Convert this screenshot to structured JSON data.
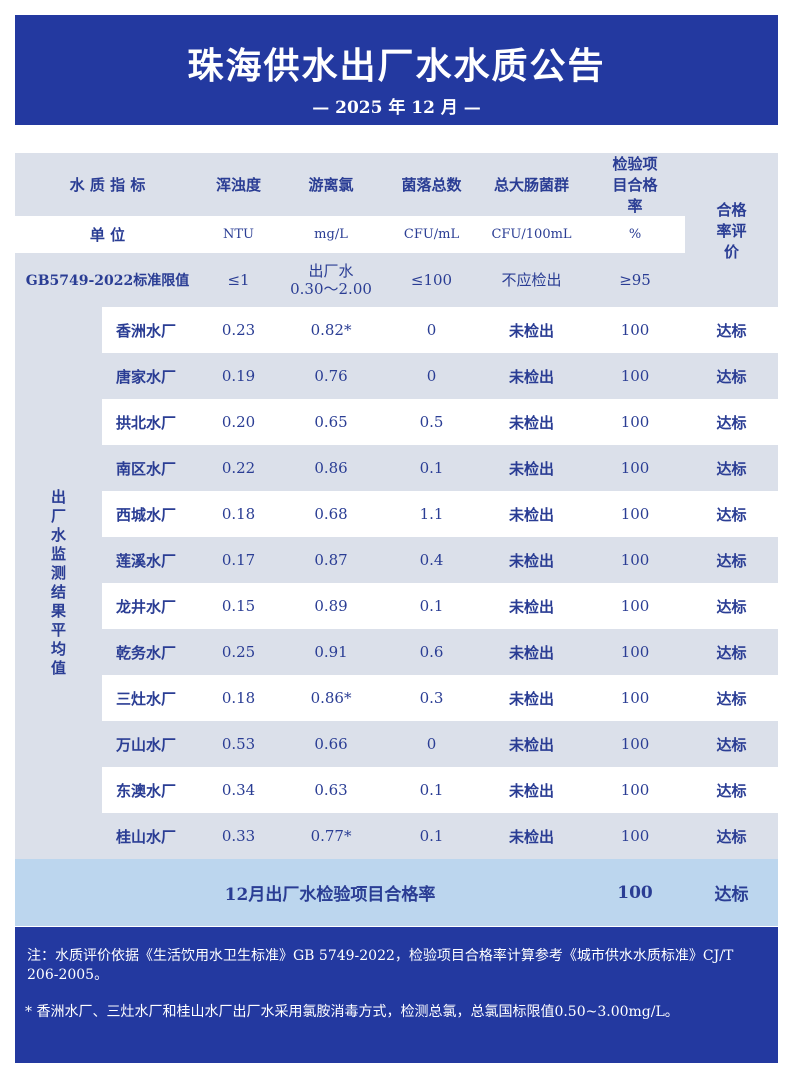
{
  "header": {
    "title": "珠海供水出厂水水质公告",
    "subtitle": "— 2025 年 12 月 —"
  },
  "table": {
    "columns": [
      "水 质 指 标",
      "浑浊度",
      "游离氯",
      "菌落总数",
      "总大肠菌群",
      "检验项目合格率",
      "合格率评价"
    ],
    "units": {
      "label": "单 位",
      "values": [
        "NTU",
        "mg/L",
        "CFU/mL",
        "CFU/100mL",
        "%"
      ]
    },
    "standard": {
      "label": "GB5749-2022标准限值",
      "values": [
        "≤1",
        "出厂水\n0.30～2.00",
        "≤100",
        "不应检出",
        "≥95"
      ]
    },
    "group_label": "出厂水监测结果平均值",
    "rows": [
      [
        "香洲水厂",
        "0.23",
        "0.82*",
        "0",
        "未检出",
        "100",
        "达标"
      ],
      [
        "唐家水厂",
        "0.19",
        "0.76",
        "0",
        "未检出",
        "100",
        "达标"
      ],
      [
        "拱北水厂",
        "0.20",
        "0.65",
        "0.5",
        "未检出",
        "100",
        "达标"
      ],
      [
        "南区水厂",
        "0.22",
        "0.86",
        "0.1",
        "未检出",
        "100",
        "达标"
      ],
      [
        "西城水厂",
        "0.18",
        "0.68",
        "1.1",
        "未检出",
        "100",
        "达标"
      ],
      [
        "莲溪水厂",
        "0.17",
        "0.87",
        "0.4",
        "未检出",
        "100",
        "达标"
      ],
      [
        "龙井水厂",
        "0.15",
        "0.89",
        "0.1",
        "未检出",
        "100",
        "达标"
      ],
      [
        "乾务水厂",
        "0.25",
        "0.91",
        "0.6",
        "未检出",
        "100",
        "达标"
      ],
      [
        "三灶水厂",
        "0.18",
        "0.86*",
        "0.3",
        "未检出",
        "100",
        "达标"
      ],
      [
        "万山水厂",
        "0.53",
        "0.66",
        "0",
        "未检出",
        "100",
        "达标"
      ],
      [
        "东澳水厂",
        "0.34",
        "0.63",
        "0.1",
        "未检出",
        "100",
        "达标"
      ],
      [
        "桂山水厂",
        "0.33",
        "0.77*",
        "0.1",
        "未检出",
        "100",
        "达标"
      ]
    ],
    "summary": {
      "label": "12月出厂水检验项目合格率",
      "rate": "100",
      "evaluation": "达标"
    }
  },
  "notes": [
    "注：水质评价依据《生活饮用水卫生标准》GB 5749-2022，检验项目合格率计算参考《城市供水水质标准》CJ/T 206-2005。",
    "* 香洲水厂、三灶水厂和桂山水厂出厂水采用氯胺消毒方式，检测总氯，总氯国标限值0.50~3.00mg/L。"
  ]
}
